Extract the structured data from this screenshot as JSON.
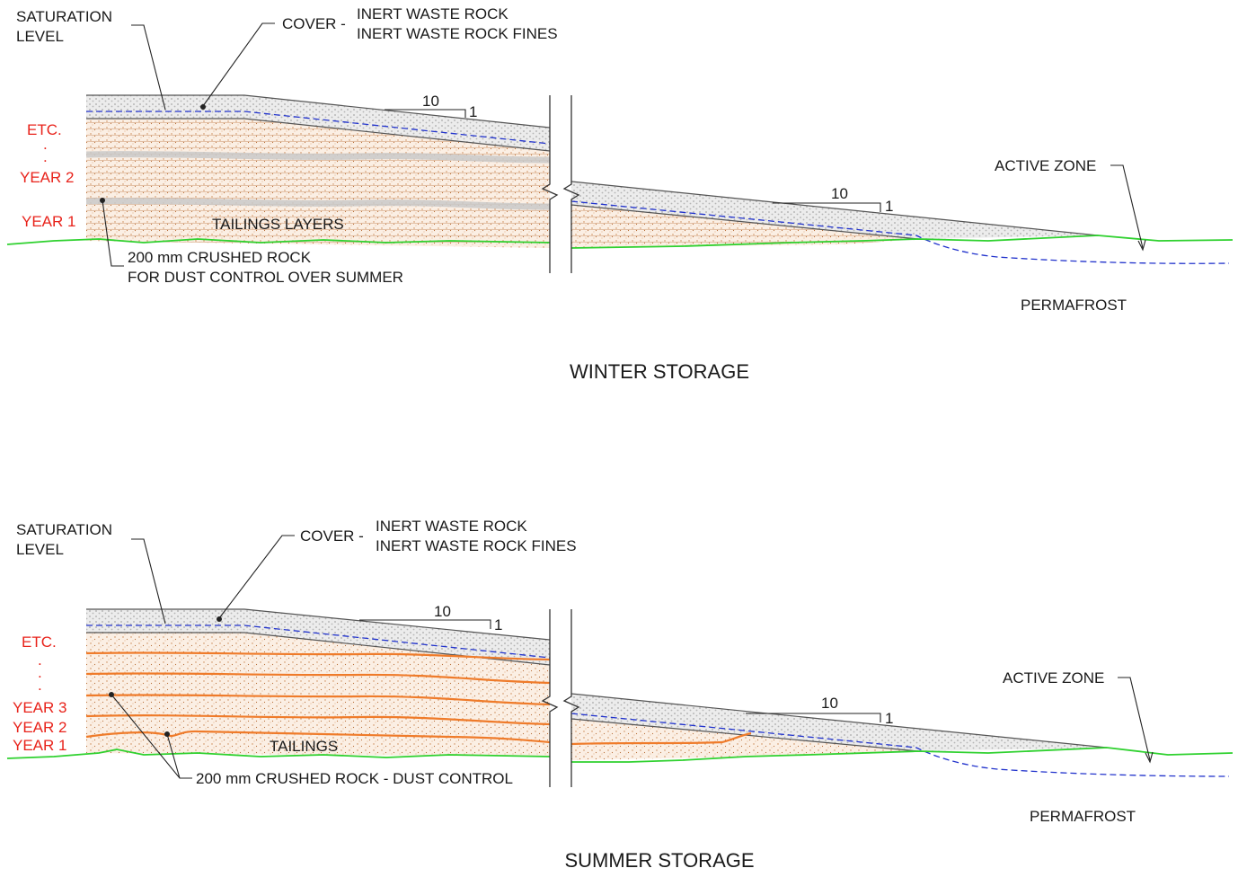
{
  "winter": {
    "title": "WINTER STORAGE",
    "saturation_label_1": "SATURATION",
    "saturation_label_2": "LEVEL",
    "cover_label": "COVER -",
    "cover_item_1": "INERT WASTE ROCK",
    "cover_item_2": "INERT WASTE ROCK FINES",
    "etc_label": "ETC.",
    "years": [
      "YEAR 2",
      "YEAR 1"
    ],
    "tailings_label": "TAILINGS   LAYERS",
    "crushed_rock_1": "200 mm CRUSHED ROCK",
    "crushed_rock_2": "FOR DUST CONTROL OVER SUMMER",
    "slope_run": "10",
    "slope_rise": "1",
    "active_zone_label": "ACTIVE ZONE",
    "permafrost_label": "PERMAFROST"
  },
  "summer": {
    "title": "SUMMER STORAGE",
    "saturation_label_1": "SATURATION",
    "saturation_label_2": "LEVEL",
    "cover_label": "COVER -",
    "cover_item_1": "INERT WASTE ROCK",
    "cover_item_2": "INERT WASTE ROCK FINES",
    "etc_label": "ETC.",
    "years": [
      "YEAR 3",
      "YEAR 2",
      "YEAR 1"
    ],
    "tailings_label": "TAILINGS",
    "crushed_rock": "200 mm CRUSHED ROCK - DUST CONTROL",
    "slope_run": "10",
    "slope_rise": "1",
    "active_zone_label": "ACTIVE ZONE",
    "permafrost_label": "PERMAFROST"
  },
  "colors": {
    "ground": "#2fd12f",
    "saturation": "#2233cc",
    "year_labels": "#e8231b",
    "crushed_rock_layer": "#ef7b2a",
    "tailings_fill": "#fbefe4",
    "cover_fill": "#e9e9e9"
  }
}
